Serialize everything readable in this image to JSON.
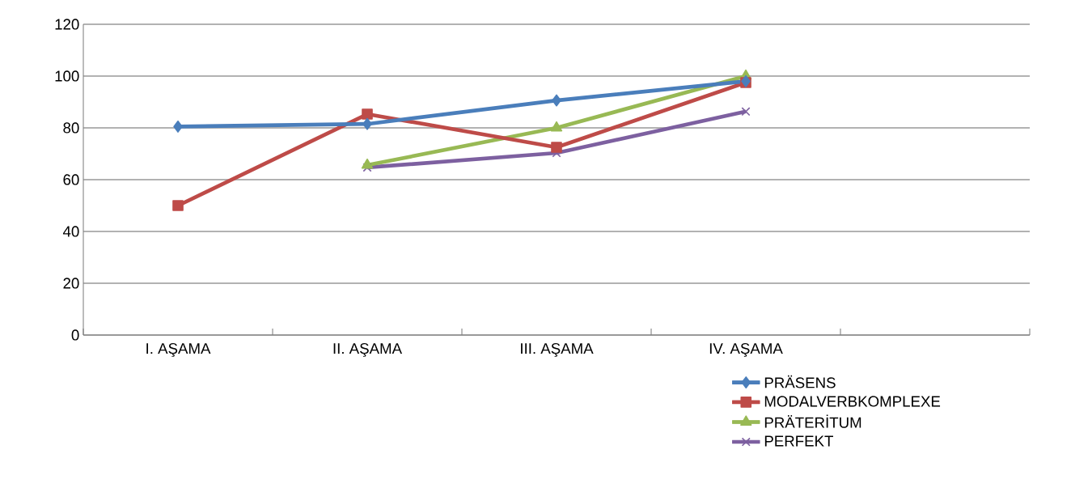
{
  "chart_data": {
    "type": "line",
    "categories": [
      "I. AŞAMA",
      "II. AŞAMA",
      "III. AŞAMA",
      "IV. AŞAMA",
      null
    ],
    "series": [
      {
        "name": "PRÄSENS",
        "color": "#4a7ebb",
        "marker": "diamond",
        "values": [
          80.5,
          81.5,
          90.6,
          98,
          null
        ]
      },
      {
        "name": "MODALVERBKOMPLEXE",
        "color": "#be4b48",
        "marker": "square",
        "values": [
          50,
          85.3,
          72.5,
          97.5,
          null
        ]
      },
      {
        "name": "PRÄTERİTUM",
        "color": "#98b954",
        "marker": "triangle",
        "values": [
          null,
          65.6,
          80,
          100,
          null
        ]
      },
      {
        "name": "PERFEKT",
        "color": "#7d60a0",
        "marker": "cross",
        "values": [
          null,
          64.7,
          70.3,
          86.3,
          null
        ]
      }
    ],
    "ylim": [
      0,
      120
    ],
    "yticks": [
      0,
      20,
      40,
      60,
      80,
      100,
      120
    ],
    "grid": "y",
    "legend": "bottom right",
    "line_style": "solid"
  }
}
